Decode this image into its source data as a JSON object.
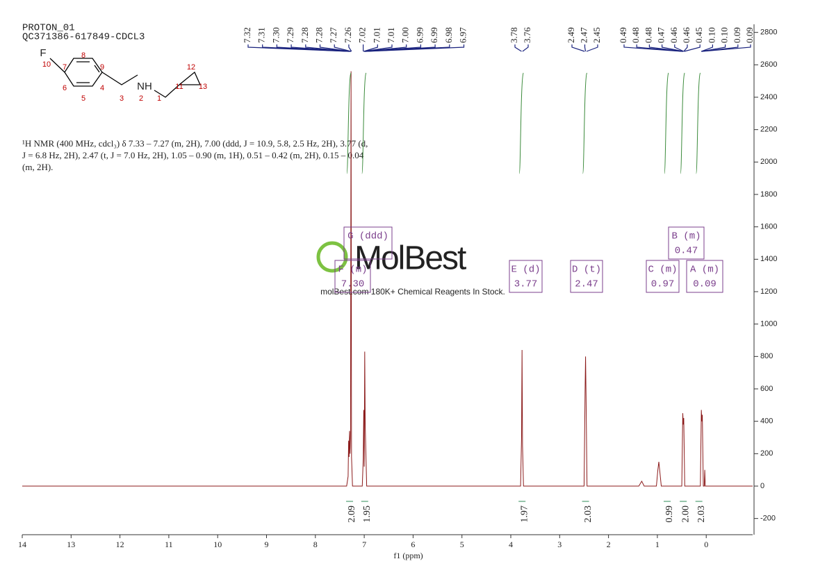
{
  "header": {
    "title": "PROTON_01",
    "sample": "QC371386-617849-CDCL3"
  },
  "molecule": {
    "atoms": [
      "F",
      "10",
      "7",
      "8",
      "9",
      "6",
      "5",
      "4",
      "3",
      "NH",
      "2",
      "1",
      "11",
      "12",
      "13"
    ]
  },
  "description": [
    "¹H NMR (400 MHz, cdcl₃) δ 7.33 – 7.27 (m, 2H), 7.00 (ddd, J = 10.9, 5.8, 2.5 Hz, 2H), 3.77 (d,",
    "J = 6.8 Hz, 2H), 2.47 (t, J = 7.0 Hz, 2H), 1.05 – 0.90 (m, 1H), 0.51 – 0.42 (m, 2H), 0.15 – 0.04",
    "(m, 2H)."
  ],
  "watermark": {
    "logo": "MolBest",
    "tagline": "molBest.com 180K+ Chemical Reagents In Stock."
  },
  "peak_picks": [
    [
      "7.32",
      "7.31",
      "7.30",
      "7.29",
      "7.28",
      "7.28",
      "7.27",
      "7.26",
      "7.02",
      "7.01",
      "7.01",
      "7.00",
      "6.99",
      "6.99",
      "6.98",
      "6.97"
    ],
    [
      "3.78",
      "3.76"
    ],
    [
      "2.49",
      "2.47",
      "2.45"
    ],
    [
      "0.49",
      "0.48",
      "0.48",
      "0.47",
      "0.46",
      "0.46",
      "0.45",
      "0.10",
      "0.10",
      "0.09",
      "0.09"
    ]
  ],
  "multiplets": [
    {
      "name": "G (ddd)"
    },
    {
      "name": "F (m)",
      "shift": "7.30"
    },
    {
      "name": "E (d)",
      "shift": "3.77"
    },
    {
      "name": "D (t)",
      "shift": "2.47"
    },
    {
      "name": "C (m)",
      "shift": "0.97"
    },
    {
      "name": "B (m)",
      "shift": "0.47"
    },
    {
      "name": "A (m)",
      "shift": "0.09"
    }
  ],
  "chart_data": {
    "type": "line",
    "x_label": "f1 (ppm)",
    "xlim": [
      14,
      -0.95
    ],
    "xticks": [
      14,
      13,
      12,
      11,
      10,
      9,
      8,
      7,
      6,
      5,
      4,
      3,
      2,
      1,
      0
    ],
    "ylim": [
      -300,
      2850
    ],
    "yticks": [
      -200,
      0,
      200,
      400,
      600,
      800,
      1000,
      1200,
      1400,
      1600,
      1800,
      2000,
      2200,
      2400,
      2600,
      2800
    ],
    "x": [
      14,
      7.36,
      7.33,
      7.32,
      7.31,
      7.3,
      7.29,
      7.28,
      7.27,
      7.26,
      7.24,
      7.04,
      7.02,
      7.01,
      7.0,
      6.99,
      6.98,
      6.95,
      3.8,
      3.78,
      3.77,
      3.76,
      3.74,
      2.5,
      2.48,
      2.47,
      2.46,
      2.44,
      1.38,
      1.32,
      1.27,
      1.02,
      0.99,
      0.97,
      0.95,
      0.92,
      0.5,
      0.48,
      0.47,
      0.46,
      0.44,
      0.12,
      0.1,
      0.09,
      0.08,
      0.06,
      0.04,
      0.03,
      0.02,
      -0.95
    ],
    "series": [
      {
        "color": "#8b1a1a",
        "values": [
          0,
          0,
          60,
          280,
          180,
          340,
          200,
          330,
          2560,
          180,
          0,
          0,
          170,
          470,
          120,
          830,
          380,
          0,
          0,
          300,
          840,
          250,
          0,
          0,
          580,
          800,
          560,
          0,
          0,
          30,
          0,
          0,
          100,
          150,
          90,
          0,
          0,
          450,
          380,
          420,
          0,
          0,
          470,
          400,
          440,
          0,
          0,
          100,
          0,
          0
        ]
      }
    ],
    "integrals": {
      "x": [
        7.3,
        6.99,
        3.77,
        2.47,
        0.8,
        0.47,
        0.15
      ],
      "values": [
        2.09,
        1.95,
        1.97,
        2.03,
        0.99,
        2.0,
        2.03
      ],
      "value_labels": [
        "2.09",
        "1.95",
        "1.97",
        "2.03",
        "0.99",
        "2.00",
        "2.03"
      ]
    }
  }
}
